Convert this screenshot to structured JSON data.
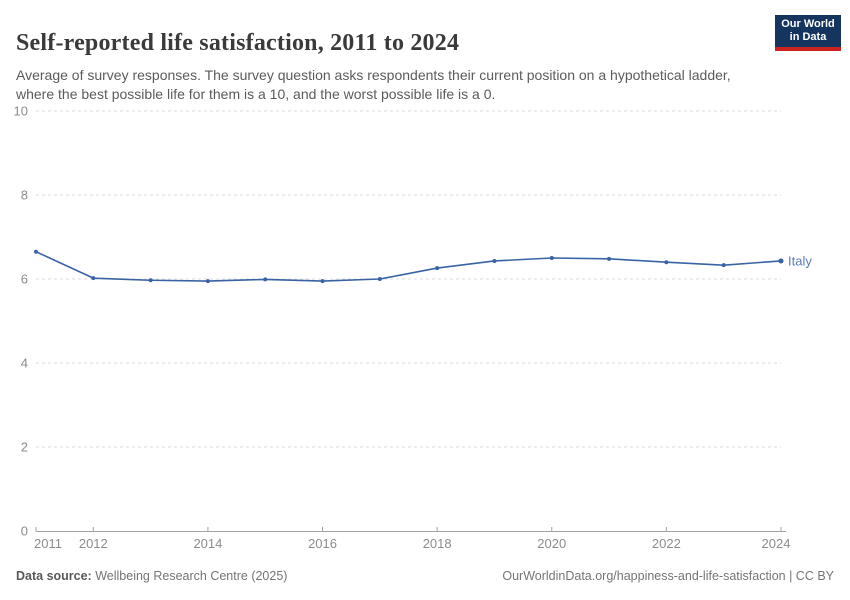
{
  "header": {
    "title": "Self-reported life satisfaction, 2011 to 2024",
    "subtitle": "Average of survey responses. The survey question asks respondents their current position on a hypothetical ladder, where the best possible life for them is a 10, and the worst possible life is a 0."
  },
  "logo": {
    "line1": "Our World",
    "line2": "in Data"
  },
  "colors": {
    "series_blue": "#3a63a5",
    "series_label_blue": "#5b7cb9",
    "gridline": "#dcdcdc",
    "axis_line": "#a3a3a3",
    "tick_label": "#8c8c8c",
    "logo_navy": "#15355f",
    "logo_red": "#cb2420"
  },
  "chart_data": {
    "type": "line",
    "title": "Self-reported life satisfaction, 2011 to 2024",
    "x": [
      2011,
      2012,
      2013,
      2014,
      2015,
      2016,
      2017,
      2018,
      2019,
      2020,
      2021,
      2022,
      2023,
      2024
    ],
    "series": [
      {
        "name": "Italy",
        "color": "#3a63a5",
        "values": [
          6.65,
          6.02,
          5.97,
          5.95,
          5.99,
          5.95,
          6.0,
          6.26,
          6.43,
          6.5,
          6.48,
          6.4,
          6.33,
          6.43
        ]
      }
    ],
    "end_label": "Italy",
    "ylim": [
      0,
      10
    ],
    "yticks": [
      0,
      2,
      4,
      6,
      8,
      10
    ],
    "xticks": [
      2011,
      2012,
      2014,
      2016,
      2018,
      2020,
      2022,
      2024
    ],
    "grid": "horizontal-dashed",
    "legend_position": "end-of-line"
  },
  "footer": {
    "source_label": "Data source:",
    "source_text": "Wellbeing Research Centre (2025)",
    "right_text": "OurWorldinData.org/happiness-and-life-satisfaction | CC BY"
  }
}
